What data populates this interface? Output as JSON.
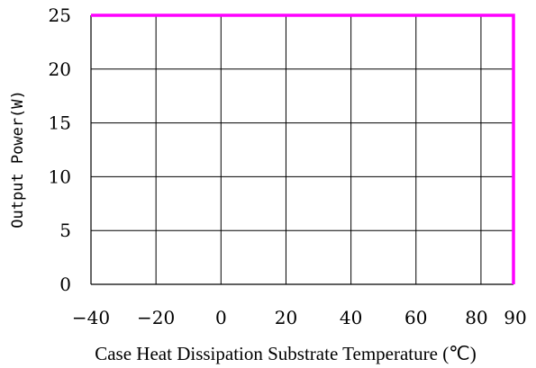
{
  "chart_data": {
    "type": "line",
    "title": "",
    "xlabel": "Case Heat Dissipation Substrate Temperature (℃)",
    "ylabel": "Output Power(W)",
    "xlim": [
      -40,
      90
    ],
    "ylim": [
      0,
      25
    ],
    "x_ticks": [
      -40,
      -20,
      0,
      20,
      40,
      60,
      80,
      90
    ],
    "x_tick_labels": [
      "−40",
      "−20",
      "0",
      "20",
      "40",
      "60",
      "80",
      "90"
    ],
    "y_ticks": [
      0,
      5,
      10,
      15,
      20,
      25
    ],
    "y_tick_labels": [
      "0",
      "5",
      "10",
      "15",
      "20",
      "25"
    ],
    "grid": true,
    "series": [
      {
        "color": "#ff00ff",
        "x": [
          -40,
          90,
          90
        ],
        "y": [
          25,
          25,
          0
        ]
      }
    ]
  }
}
